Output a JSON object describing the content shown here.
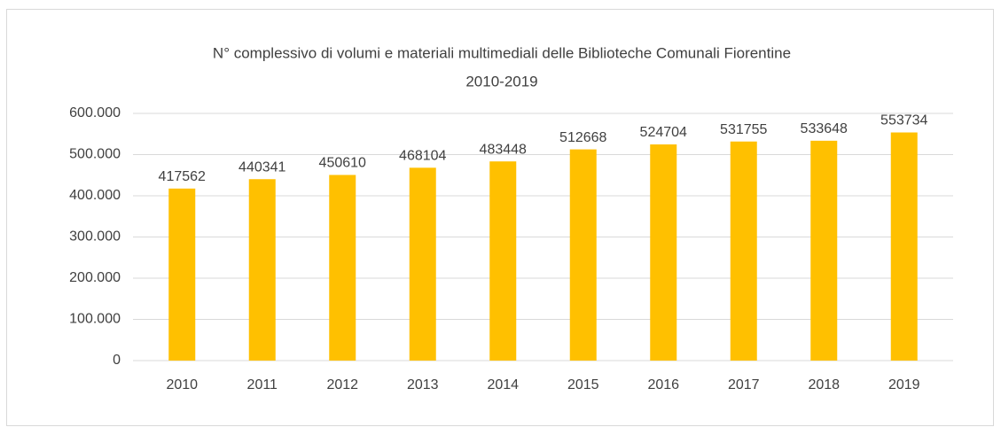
{
  "chart_data": {
    "type": "bar",
    "title": "N° complessivo di volumi e materiali multimediali delle Biblioteche Comunali Fiorentine",
    "subtitle": "2010-2019",
    "categories": [
      "2010",
      "2011",
      "2012",
      "2013",
      "2014",
      "2015",
      "2016",
      "2017",
      "2018",
      "2019"
    ],
    "values": [
      417562,
      440341,
      450610,
      468104,
      483448,
      512668,
      524704,
      531755,
      533648,
      553734
    ],
    "color": "#ffc000",
    "ylim": [
      0,
      600000
    ],
    "yticks": [
      0,
      {
        "value": 100000,
        "label": "100.000"
      },
      {
        "value": 200000,
        "label": "200.000"
      },
      {
        "value": 300000,
        "label": "300.000"
      },
      {
        "value": 400000,
        "label": "400.000"
      },
      {
        "value": 500000,
        "label": "500.000"
      },
      {
        "value": 600000,
        "label": "600.000"
      }
    ],
    "grid": true
  }
}
